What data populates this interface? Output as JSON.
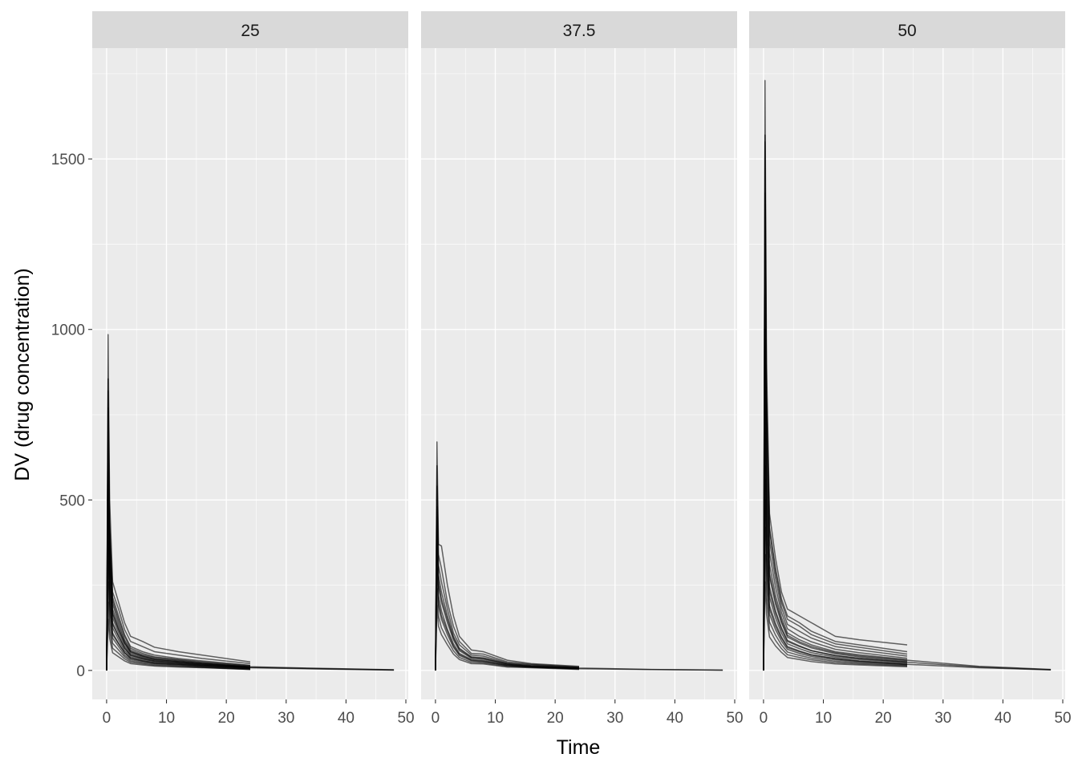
{
  "chart_data": {
    "type": "line",
    "facet_labels": [
      "25",
      "37.5",
      "50"
    ],
    "xlabel": "Time",
    "ylabel": "DV (drug concentration)",
    "xlim": [
      -2.4,
      50.4
    ],
    "ylim": [
      -85,
      1825
    ],
    "x_ticks": [
      0,
      10,
      20,
      30,
      40,
      50
    ],
    "x_tick_labels": [
      "0",
      "10",
      "20",
      "30",
      "40",
      "50"
    ],
    "y_ticks": [
      0,
      500,
      1000,
      1500
    ],
    "y_tick_labels": [
      "0",
      "500",
      "1000",
      "1500"
    ],
    "grid": true,
    "line_color": "#000000",
    "panel_background": "#ebebeb",
    "strip_background": "#d9d9d9",
    "sampling_times": [
      0,
      0.25,
      0.5,
      1,
      2,
      3,
      4,
      6,
      8,
      12,
      16,
      24,
      36,
      48
    ],
    "panels": [
      {
        "label": "25",
        "series": [
          {
            "values": [
              0,
              985,
              500,
              260,
              200,
              140,
              100,
              85,
              68,
              55,
              45,
              25
            ]
          },
          {
            "values": [
              0,
              855,
              440,
              230,
              180,
              120,
              85,
              70,
              55,
              45,
              35,
              20
            ]
          },
          {
            "values": [
              0,
              820,
              420,
              215,
              160,
              105,
              70,
              55,
              45,
              35,
              28,
              15
            ]
          },
          {
            "values": [
              0,
              770,
              400,
              205,
              150,
              100,
              65,
              50,
              40,
              32,
              25,
              14
            ]
          },
          {
            "values": [
              0,
              720,
              380,
              195,
              140,
              90,
              60,
              46,
              38,
              30,
              23,
              12
            ]
          },
          {
            "values": [
              0,
              670,
              350,
              180,
              130,
              85,
              56,
              43,
              35,
              28,
              21,
              11
            ]
          },
          {
            "values": [
              0,
              620,
              330,
              170,
              120,
              80,
              52,
              40,
              32,
              26,
              20,
              10
            ]
          },
          {
            "values": [
              0,
              560,
              300,
              155,
              110,
              72,
              48,
              37,
              30,
              24,
              18,
              9
            ]
          },
          {
            "values": [
              0,
              500,
              270,
              140,
              100,
              65,
              44,
              34,
              27,
              22,
              16,
              8
            ]
          },
          {
            "values": [
              0,
              440,
              240,
              125,
              90,
              58,
              40,
              31,
              25,
              20,
              15,
              7
            ]
          },
          {
            "values": [
              0,
              380,
              210,
              110,
              80,
              52,
              36,
              28,
              22,
              18,
              13,
              6
            ]
          },
          {
            "values": [
              0,
              320,
              180,
              95,
              70,
              45,
              32,
              25,
              20,
              16,
              12,
              5
            ]
          },
          {
            "values": [
              0,
              260,
              150,
              80,
              60,
              40,
              28,
              22,
              18,
              14,
              10,
              4
            ]
          },
          {
            "values": [
              0,
              200,
              120,
              65,
              50,
              34,
              24,
              19,
              15,
              12,
              9,
              3
            ]
          },
          {
            "values": [
              0,
              150,
              95,
              52,
              40,
              28,
              20,
              16,
              13,
              10,
              8,
              3
            ]
          },
          {
            "values": [
              0,
              600,
              320,
              165,
              120,
              80,
              55,
              42,
              33,
              26,
              20,
              11,
              6,
              2
            ]
          },
          {
            "values": [
              0,
              480,
              260,
              135,
              100,
              66,
              45,
              35,
              28,
              22,
              17,
              9,
              5,
              1.5
            ]
          },
          {
            "values": [
              0,
              360,
              200,
              105,
              78,
              52,
              36,
              28,
              22,
              18,
              14,
              8,
              4,
              1
            ]
          }
        ]
      },
      {
        "label": "37.5",
        "series": [
          {
            "values": [
              0,
              670,
              370,
              365,
              250,
              160,
              100,
              60,
              55,
              30,
              20,
              12
            ]
          },
          {
            "values": [
              0,
              600,
              340,
              300,
              200,
              130,
              85,
              50,
              48,
              25,
              18,
              10
            ]
          },
          {
            "values": [
              0,
              540,
              310,
              260,
              180,
              110,
              75,
              45,
              42,
              22,
              16,
              9
            ]
          },
          {
            "values": [
              0,
              480,
              280,
              230,
              160,
              100,
              65,
              40,
              37,
              20,
              14,
              8
            ]
          },
          {
            "values": [
              0,
              420,
              250,
              200,
              140,
              90,
              58,
              36,
              33,
              18,
              12,
              7
            ]
          },
          {
            "values": [
              0,
              360,
              220,
              175,
              120,
              78,
              50,
              32,
              29,
              16,
              11,
              6
            ]
          },
          {
            "values": [
              0,
              300,
              190,
              150,
              105,
              68,
              44,
              28,
              25,
              14,
              10,
              5
            ]
          },
          {
            "values": [
              0,
              240,
              160,
              125,
              90,
              58,
              38,
              24,
              22,
              12,
              9,
              4
            ]
          },
          {
            "values": [
              0,
              190,
              130,
              105,
              75,
              48,
              32,
              20,
              19,
              10,
              8,
              3
            ]
          },
          {
            "values": [
              0,
              450,
              260,
              210,
              150,
              95,
              62,
              38,
              35,
              19,
              13,
              7,
              3,
              1
            ]
          },
          {
            "values": [
              0,
              330,
              200,
              160,
              115,
              72,
              47,
              30,
              27,
              15,
              11,
              5,
              2.5,
              1
            ]
          }
        ]
      },
      {
        "label": "50",
        "series": [
          {
            "values": [
              0,
              1730,
              900,
              460,
              330,
              230,
              180,
              160,
              140,
              100,
              90,
              75
            ]
          },
          {
            "values": [
              0,
              1570,
              820,
              420,
              300,
              210,
              160,
              140,
              115,
              85,
              75,
              55
            ]
          },
          {
            "values": [
              0,
              1550,
              800,
              410,
              290,
              200,
              150,
              130,
              105,
              78,
              68,
              48
            ]
          },
          {
            "values": [
              0,
              1400,
              730,
              380,
              270,
              185,
              135,
              115,
              95,
              70,
              60,
              42
            ]
          },
          {
            "values": [
              0,
              1250,
              660,
              345,
              245,
              170,
              122,
              100,
              84,
              62,
              52,
              36
            ]
          },
          {
            "values": [
              0,
              1100,
              590,
              310,
              220,
              155,
              110,
              90,
              75,
              55,
              46,
              32
            ]
          },
          {
            "values": [
              0,
              950,
              520,
              275,
              195,
              140,
              98,
              80,
              66,
              49,
              40,
              28
            ]
          },
          {
            "values": [
              0,
              820,
              460,
              245,
              175,
              125,
              88,
              72,
              58,
              44,
              36,
              25
            ]
          },
          {
            "values": [
              0,
              700,
              400,
              215,
              155,
              110,
              78,
              64,
              52,
              39,
              32,
              22
            ]
          },
          {
            "values": [
              0,
              600,
              350,
              190,
              138,
              98,
              70,
              57,
              46,
              35,
              28,
              19
            ]
          },
          {
            "values": [
              0,
              500,
              300,
              165,
              120,
              86,
              62,
              50,
              41,
              31,
              25,
              17
            ]
          },
          {
            "values": [
              0,
              420,
              255,
              142,
              104,
              75,
              54,
              44,
              36,
              27,
              22,
              15
            ]
          },
          {
            "values": [
              0,
              340,
              210,
              120,
              88,
              64,
              46,
              38,
              31,
              23,
              19,
              13
            ]
          },
          {
            "values": [
              0,
              260,
              165,
              98,
              72,
              53,
              38,
              32,
              26,
              19,
              16,
              11
            ]
          },
          {
            "values": [
              0,
              1000,
              540,
              285,
              205,
              145,
              103,
              84,
              70,
              52,
              43,
              30,
              12,
              3
            ]
          },
          {
            "values": [
              0,
              760,
              430,
              232,
              168,
              120,
              85,
              70,
              58,
              43,
              35,
              24,
              10,
              2
            ]
          },
          {
            "values": [
              0,
              560,
              330,
              180,
              130,
              94,
              67,
              55,
              45,
              34,
              27,
              18,
              8,
              1.5
            ]
          }
        ]
      }
    ]
  }
}
